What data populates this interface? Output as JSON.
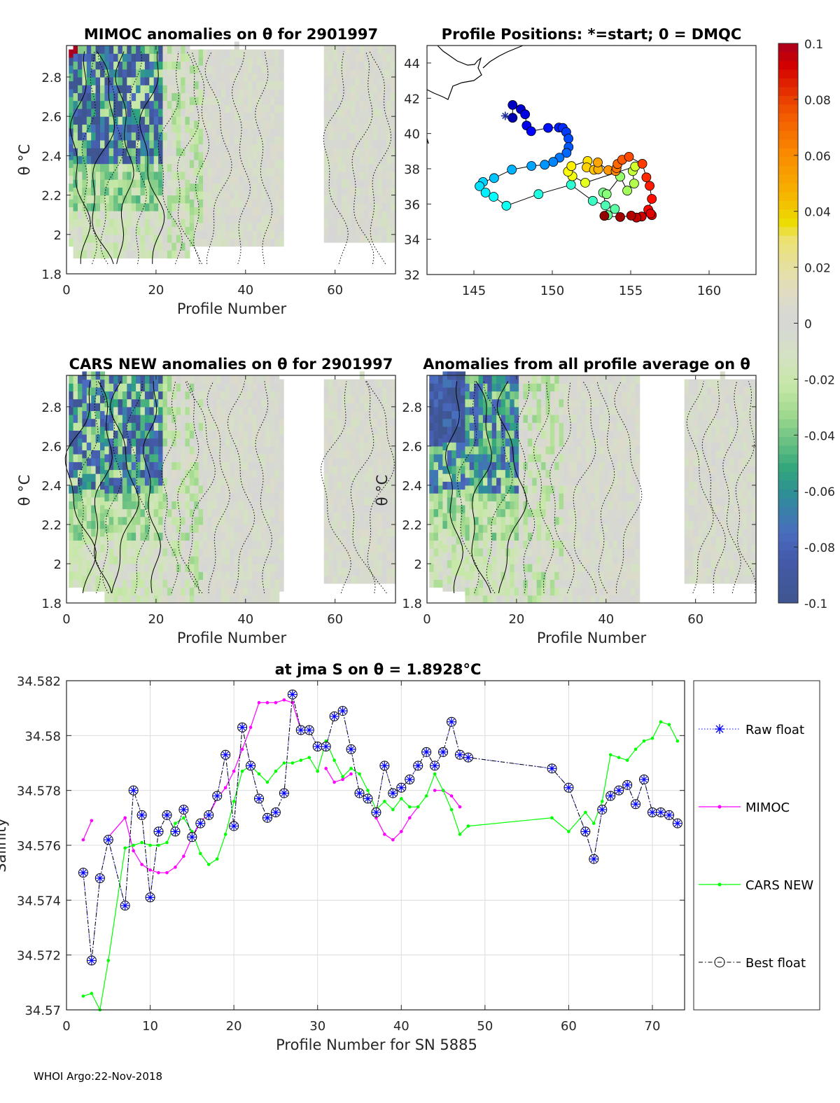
{
  "chart_data": [
    {
      "type": "heatmap",
      "title": "MIMOC anomalies on θ  for 2901997",
      "xlabel": "Profile Number",
      "ylabel": "θ °C",
      "xlim": [
        0,
        73.5
      ],
      "ylim": [
        1.8,
        2.96
      ],
      "xticks": [
        0,
        20,
        40,
        60
      ],
      "yticks": [
        1.8,
        2,
        2.2,
        2.4,
        2.6,
        2.8
      ],
      "ytick_labels": [
        "1.8",
        "2",
        "2.2",
        "2.4",
        "2.6",
        "2.8"
      ]
    },
    {
      "type": "scatter",
      "title": "Profile Positions: *=start; 0 = DMQC",
      "xlim": [
        142,
        163
      ],
      "ylim": [
        32,
        45
      ],
      "xticks": [
        145,
        150,
        155,
        160
      ],
      "yticks": [
        32,
        34,
        36,
        38,
        40,
        42,
        44
      ],
      "start": {
        "lon": 147.0,
        "lat": 41.0
      },
      "positions": [
        [
          147.47,
          40.89
        ],
        [
          147.47,
          41.62
        ],
        [
          147.99,
          41.38
        ],
        [
          148.27,
          41.09
        ],
        [
          148.36,
          40.45
        ],
        [
          148.65,
          40.13
        ],
        [
          149.73,
          40.32
        ],
        [
          150.42,
          40.34
        ],
        [
          150.67,
          40.32
        ],
        [
          150.89,
          40.08
        ],
        [
          151.03,
          39.71
        ],
        [
          151.04,
          39.23
        ],
        [
          150.91,
          38.9
        ],
        [
          150.46,
          38.63
        ],
        [
          150.06,
          38.39
        ],
        [
          149.52,
          38.23
        ],
        [
          148.67,
          38.16
        ],
        [
          147.42,
          37.95
        ],
        [
          146.29,
          37.47
        ],
        [
          145.58,
          37.25
        ],
        [
          145.36,
          37.01
        ],
        [
          145.74,
          36.65
        ],
        [
          146.26,
          36.41
        ],
        [
          147.07,
          35.9
        ],
        [
          149.12,
          36.56
        ],
        [
          151.19,
          37.09
        ],
        [
          152.58,
          36.18
        ],
        [
          153.39,
          35.92
        ],
        [
          153.99,
          35.72
        ],
        [
          153.54,
          35.37
        ],
        [
          153.24,
          36.65
        ],
        [
          153.47,
          36.56
        ],
        [
          154.33,
          37.55
        ],
        [
          154.78,
          36.76
        ],
        [
          155.22,
          37.16
        ],
        [
          155.13,
          37.87
        ],
        [
          155.28,
          38.13
        ],
        [
          152.1,
          37.21
        ],
        [
          151.28,
          37.58
        ],
        [
          151.0,
          37.84
        ],
        [
          151.22,
          38.15
        ],
        [
          152.25,
          38.44
        ],
        [
          152.19,
          38.08
        ],
        [
          152.66,
          37.94
        ],
        [
          152.93,
          37.97
        ],
        [
          152.9,
          38.36
        ],
        [
          153.57,
          37.92
        ],
        [
          154.04,
          37.87
        ],
        [
          154.1,
          38.04
        ],
        [
          154.16,
          38.27
        ],
        [
          154.46,
          38.51
        ],
        [
          154.89,
          38.68
        ],
        [
          155.74,
          38.28
        ],
        [
          156.0,
          37.51
        ],
        [
          156.21,
          37.03
        ],
        [
          156.35,
          36.29
        ],
        [
          156.12,
          35.68
        ],
        [
          156.35,
          35.37
        ],
        [
          156.27,
          35.46
        ],
        [
          155.7,
          35.29
        ],
        [
          155.37,
          35.23
        ],
        [
          155.03,
          35.34
        ],
        [
          154.33,
          35.26
        ],
        [
          153.32,
          35.33
        ]
      ]
    },
    {
      "type": "heatmap",
      "title": "CARS NEW anomalies on θ for 2901997",
      "xlabel": "Profile Number",
      "ylabel": "θ °C",
      "xlim": [
        0,
        73.5
      ],
      "ylim": [
        1.8,
        2.96
      ],
      "xticks": [
        0,
        20,
        40,
        60
      ],
      "yticks": [
        1.8,
        2,
        2.2,
        2.4,
        2.6,
        2.8
      ],
      "ytick_labels": [
        "1.8",
        "2",
        "2.2",
        "2.4",
        "2.6",
        "2.8"
      ]
    },
    {
      "type": "heatmap",
      "title": "Anomalies from all profile average on θ",
      "xlabel": "Profile Number",
      "ylabel": "θ °C",
      "xlim": [
        0,
        73.5
      ],
      "ylim": [
        1.8,
        2.96
      ],
      "xticks": [
        0,
        20,
        40,
        60
      ],
      "yticks": [
        1.8,
        2,
        2.2,
        2.4,
        2.6,
        2.8
      ],
      "ytick_labels": [
        "1.8",
        "2",
        "2.2",
        "2.4",
        "2.6",
        "2.8"
      ]
    },
    {
      "type": "colorbar",
      "range": [
        -0.1,
        0.1
      ],
      "ticks": [
        0.1,
        0.08,
        0.06,
        0.04,
        0.02,
        0,
        -0.02,
        -0.04,
        -0.06,
        -0.08,
        -0.1
      ],
      "tick_labels": [
        "0.1",
        "0.08",
        "0.06",
        "0.04",
        "0.02",
        "0",
        "-0.02",
        "-0.04",
        "-0.06",
        "-0.08",
        "-0.1"
      ],
      "colors": [
        [
          -0.1,
          "#3e5690"
        ],
        [
          -0.085,
          "#4459a8"
        ],
        [
          -0.075,
          "#4a6cc0"
        ],
        [
          -0.062,
          "#2f8c9a"
        ],
        [
          -0.052,
          "#31a67c"
        ],
        [
          -0.042,
          "#6cc283"
        ],
        [
          -0.032,
          "#a4da90"
        ],
        [
          -0.022,
          "#c7e8a8"
        ],
        [
          -0.01,
          "#d6e0c6"
        ],
        [
          0,
          "#d6d6d6"
        ],
        [
          0.01,
          "#dedcc6"
        ],
        [
          0.02,
          "#e6e0a0"
        ],
        [
          0.03,
          "#ece170"
        ],
        [
          0.036,
          "#ecdc00"
        ],
        [
          0.046,
          "#f6b400"
        ],
        [
          0.06,
          "#fa8c00"
        ],
        [
          0.075,
          "#f25800"
        ],
        [
          0.085,
          "#e02400"
        ],
        [
          0.092,
          "#d40000"
        ],
        [
          0.1,
          "#a8001e"
        ]
      ]
    },
    {
      "type": "line",
      "title": "at jma S on θ = 1.8928°C",
      "title_main": "at jma S on ",
      "title_theta": "θ",
      "title_rest": " = 1.8928",
      "title_sup": "o",
      "title_unit": "C",
      "xlabel": "Profile Number for SN 5885",
      "ylabel": "Salinity",
      "xlim": [
        0,
        74
      ],
      "ylim": [
        34.57,
        34.582
      ],
      "xticks": [
        0,
        10,
        20,
        30,
        40,
        50,
        60,
        70
      ],
      "yticks": [
        34.57,
        34.572,
        34.574,
        34.576,
        34.578,
        34.58,
        34.582
      ],
      "ytick_labels": [
        "34.57",
        "34.572",
        "34.574",
        "34.576",
        "34.578",
        "34.58",
        "34.582"
      ],
      "grid": true,
      "legend_position": "outside-right",
      "series": [
        {
          "name": "Raw float",
          "color": "#0000ff",
          "style": "dotted-star",
          "x": [
            2,
            3,
            4,
            5,
            7,
            8,
            9,
            10,
            11,
            12,
            13,
            14,
            15,
            16,
            17,
            18,
            19,
            20,
            21,
            22,
            23,
            24,
            25,
            26,
            27,
            28,
            29,
            30,
            31,
            32,
            33,
            34,
            35,
            36,
            37,
            38,
            39,
            40,
            41,
            42,
            43,
            44,
            45,
            46,
            47,
            48,
            58,
            60,
            62,
            63,
            64,
            65,
            66,
            67,
            68,
            69,
            70,
            71,
            72,
            73
          ],
          "y": [
            34.575,
            34.5718,
            34.5748,
            34.5762,
            34.5738,
            34.578,
            34.5771,
            34.5741,
            34.5765,
            34.5771,
            34.5765,
            34.5773,
            34.5763,
            34.5768,
            34.5771,
            34.5778,
            34.5793,
            34.5767,
            34.5803,
            34.5789,
            34.5777,
            34.577,
            34.5772,
            34.5779,
            34.5815,
            34.5802,
            34.5802,
            34.5796,
            34.5796,
            34.5807,
            34.5809,
            34.5795,
            34.5779,
            34.5777,
            34.5772,
            34.5789,
            34.5779,
            34.5781,
            34.5784,
            34.5789,
            34.5794,
            34.5789,
            34.5794,
            34.5805,
            34.5793,
            34.5792,
            34.5788,
            34.5781,
            34.5765,
            34.5755,
            34.5773,
            34.5778,
            34.578,
            34.5782,
            34.5775,
            34.5784,
            34.5772,
            34.5772,
            34.5771,
            34.5768
          ]
        },
        {
          "name": "MIMOC",
          "color": "#ff00ff",
          "style": "line-dot",
          "x": [
            2,
            3,
            4,
            5,
            7,
            8,
            9,
            10,
            11,
            12,
            13,
            14,
            15,
            16,
            17,
            18,
            19,
            20,
            21,
            22,
            23,
            24,
            25,
            26,
            27,
            28,
            29,
            31,
            32,
            33,
            34,
            35,
            37,
            38,
            39,
            40,
            41,
            42,
            43,
            44,
            45,
            46,
            47
          ],
          "y": [
            34.5762,
            34.5769,
            null,
            34.5763,
            34.577,
            34.5758,
            34.5753,
            34.5751,
            34.575,
            34.575,
            34.5752,
            34.5756,
            34.5763,
            34.5769,
            34.5771,
            34.5777,
            34.5781,
            34.5787,
            34.5795,
            34.5803,
            34.5812,
            34.5812,
            34.5812,
            34.5813,
            34.5812,
            34.5802,
            null,
            34.5788,
            34.5783,
            34.5784,
            34.5786,
            null,
            34.577,
            34.5764,
            34.5762,
            34.5765,
            34.577,
            34.5774,
            null,
            34.578,
            34.578,
            34.5778,
            34.5774
          ]
        },
        {
          "name": "CARS NEW",
          "color": "#00ff00",
          "style": "line-dot",
          "x": [
            2,
            3,
            4,
            5,
            7,
            8,
            9,
            10,
            11,
            12,
            13,
            14,
            15,
            16,
            17,
            18,
            19,
            20,
            21,
            22,
            23,
            24,
            25,
            26,
            27,
            28,
            29,
            30,
            31,
            32,
            33,
            34,
            35,
            36,
            37,
            38,
            39,
            40,
            41,
            42,
            43,
            44,
            45,
            46,
            47,
            48,
            58,
            60,
            62,
            63,
            64,
            65,
            66,
            67,
            68,
            69,
            70,
            71,
            72,
            73
          ],
          "y": [
            34.5705,
            34.5706,
            34.57,
            34.5718,
            34.5759,
            34.576,
            34.5761,
            34.576,
            34.576,
            34.5761,
            34.5768,
            34.577,
            34.5765,
            34.5757,
            34.5753,
            34.5755,
            34.5764,
            34.5776,
            34.5787,
            34.5789,
            34.5786,
            34.5783,
            34.5787,
            34.579,
            34.579,
            34.5791,
            34.5792,
            34.5787,
            34.5798,
            34.5791,
            34.5785,
            34.5788,
            34.5786,
            34.578,
            34.5773,
            34.5776,
            34.5773,
            34.5777,
            34.5774,
            34.5774,
            34.5778,
            34.5786,
            34.578,
            34.5773,
            34.5764,
            34.5767,
            34.577,
            34.5765,
            34.5772,
            34.5768,
            34.5776,
            34.5793,
            34.5792,
            34.5791,
            34.5795,
            34.5798,
            34.5799,
            34.5805,
            34.5804,
            34.5798
          ]
        },
        {
          "name": "Best float",
          "color": "#000000",
          "style": "dashdot-circle",
          "same_as": "Raw float"
        }
      ]
    }
  ],
  "footer": "WHOI Argo:22-Nov-2018"
}
